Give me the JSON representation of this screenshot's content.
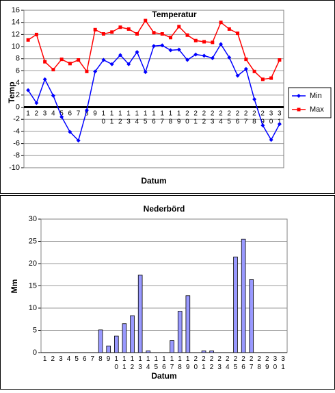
{
  "chart_data": [
    {
      "type": "line",
      "title": "Temperatur",
      "x_label": "Datum",
      "y_label": "Temp",
      "categories": [
        "1",
        "2",
        "3",
        "4",
        "5",
        "6",
        "7",
        "8",
        "9",
        "10",
        "11",
        "12",
        "13",
        "14",
        "15",
        "16",
        "17",
        "18",
        "19",
        "20",
        "21",
        "22",
        "23",
        "24",
        "25",
        "26",
        "27",
        "28",
        "29",
        "30",
        "31"
      ],
      "series": [
        {
          "name": "Min",
          "color": "#0000ff",
          "values": [
            2.8,
            0.7,
            4.6,
            1.9,
            -1.6,
            -4.1,
            -5.5,
            -0.5,
            5.9,
            7.8,
            7.1,
            8.6,
            7.1,
            9.1,
            5.8,
            10.1,
            10.2,
            9.4,
            9.5,
            7.8,
            8.7,
            8.5,
            8.1,
            10.4,
            8.2,
            5.2,
            6.3,
            1.3,
            -3.0,
            -5.4,
            -2.8
          ]
        },
        {
          "name": "Max",
          "color": "#ff0000",
          "values": [
            11.1,
            12.0,
            7.5,
            6.2,
            7.9,
            7.2,
            7.8,
            5.9,
            12.8,
            12.1,
            12.4,
            13.2,
            12.9,
            12.1,
            14.3,
            12.3,
            12.1,
            11.5,
            13.3,
            11.9,
            11.0,
            10.8,
            10.7,
            14.0,
            12.9,
            12.2,
            7.9,
            5.9,
            4.6,
            4.8,
            7.8
          ]
        }
      ],
      "ylim": [
        -10,
        16
      ],
      "yticks": [
        -10,
        -8,
        -6,
        -4,
        -2,
        0,
        2,
        4,
        6,
        8,
        10,
        12,
        14,
        16
      ],
      "grid": true,
      "legend": "right"
    },
    {
      "type": "bar",
      "title": "Nederbörd",
      "x_label": "Datum",
      "y_label": "Mm",
      "color": "#9999ff",
      "categories": [
        "1",
        "2",
        "3",
        "4",
        "5",
        "6",
        "7",
        "8",
        "9",
        "10",
        "11",
        "12",
        "13",
        "14",
        "15",
        "16",
        "17",
        "18",
        "19",
        "20",
        "21",
        "22",
        "23",
        "24",
        "25",
        "26",
        "27",
        "28",
        "29",
        "30",
        "31"
      ],
      "values": [
        0,
        0,
        0,
        0,
        0,
        0,
        0,
        5.1,
        1.5,
        3.7,
        6.5,
        8.3,
        17.4,
        0.4,
        0,
        0,
        2.7,
        9.3,
        12.8,
        0,
        0.4,
        0.4,
        0,
        0,
        21.5,
        25.5,
        16.4,
        0,
        0,
        0,
        0
      ],
      "ylim": [
        0,
        30
      ],
      "yticks": [
        0,
        5,
        10,
        15,
        20,
        25,
        30
      ],
      "grid": true
    }
  ]
}
